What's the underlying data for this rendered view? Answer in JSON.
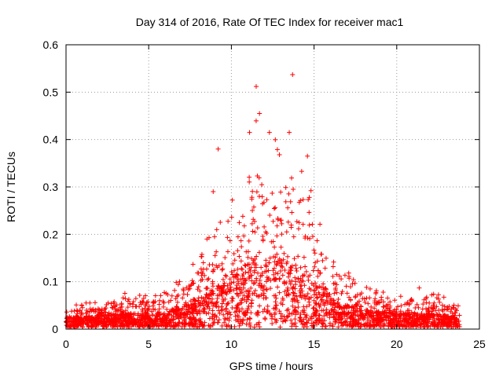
{
  "chart_data": {
    "type": "scatter",
    "title": "Day 314 of 2016, Rate Of TEC Index for receiver mac1",
    "xlabel": "GPS time / hours",
    "ylabel": "ROTI / TECUs",
    "xlim": [
      0,
      25
    ],
    "ylim": [
      0,
      0.6
    ],
    "x_ticks": [
      0,
      5,
      10,
      15,
      20,
      25
    ],
    "x_tick_labels": [
      "0",
      "5",
      "10",
      "15",
      "20",
      "25"
    ],
    "y_ticks": [
      0,
      0.1,
      0.2,
      0.3,
      0.4,
      0.5,
      0.6
    ],
    "y_tick_labels": [
      "0",
      "0.1",
      "0.2",
      "0.3",
      "0.4",
      "0.5",
      "0.6"
    ],
    "grid": true,
    "marker": "+",
    "color": "#ff0000",
    "series": [
      {
        "name": "ROTI",
        "description": "dense scatter of ROTI samples across all satellites",
        "envelope_hours": [
          0,
          2,
          4,
          6,
          7.5,
          8.5,
          9.5,
          10.5,
          11.5,
          12.5,
          13.5,
          14.5,
          15.5,
          16.5,
          17.5,
          18.5,
          20,
          22,
          23.8
        ],
        "envelope_upper": [
          0.05,
          0.06,
          0.08,
          0.08,
          0.13,
          0.2,
          0.24,
          0.3,
          0.44,
          0.4,
          0.4,
          0.36,
          0.2,
          0.12,
          0.12,
          0.09,
          0.07,
          0.1,
          0.05
        ],
        "envelope_typical": [
          0.02,
          0.025,
          0.03,
          0.03,
          0.05,
          0.07,
          0.09,
          0.12,
          0.15,
          0.15,
          0.14,
          0.12,
          0.09,
          0.05,
          0.04,
          0.035,
          0.03,
          0.03,
          0.02
        ],
        "notable_points": [
          {
            "x": 9.2,
            "y": 0.38
          },
          {
            "x": 8.9,
            "y": 0.29
          },
          {
            "x": 11.1,
            "y": 0.415
          },
          {
            "x": 11.5,
            "y": 0.512
          },
          {
            "x": 11.7,
            "y": 0.455
          },
          {
            "x": 13.7,
            "y": 0.537
          },
          {
            "x": 13.5,
            "y": 0.415
          },
          {
            "x": 14.6,
            "y": 0.365
          },
          {
            "x": 12.3,
            "y": 0.415
          }
        ]
      }
    ]
  }
}
